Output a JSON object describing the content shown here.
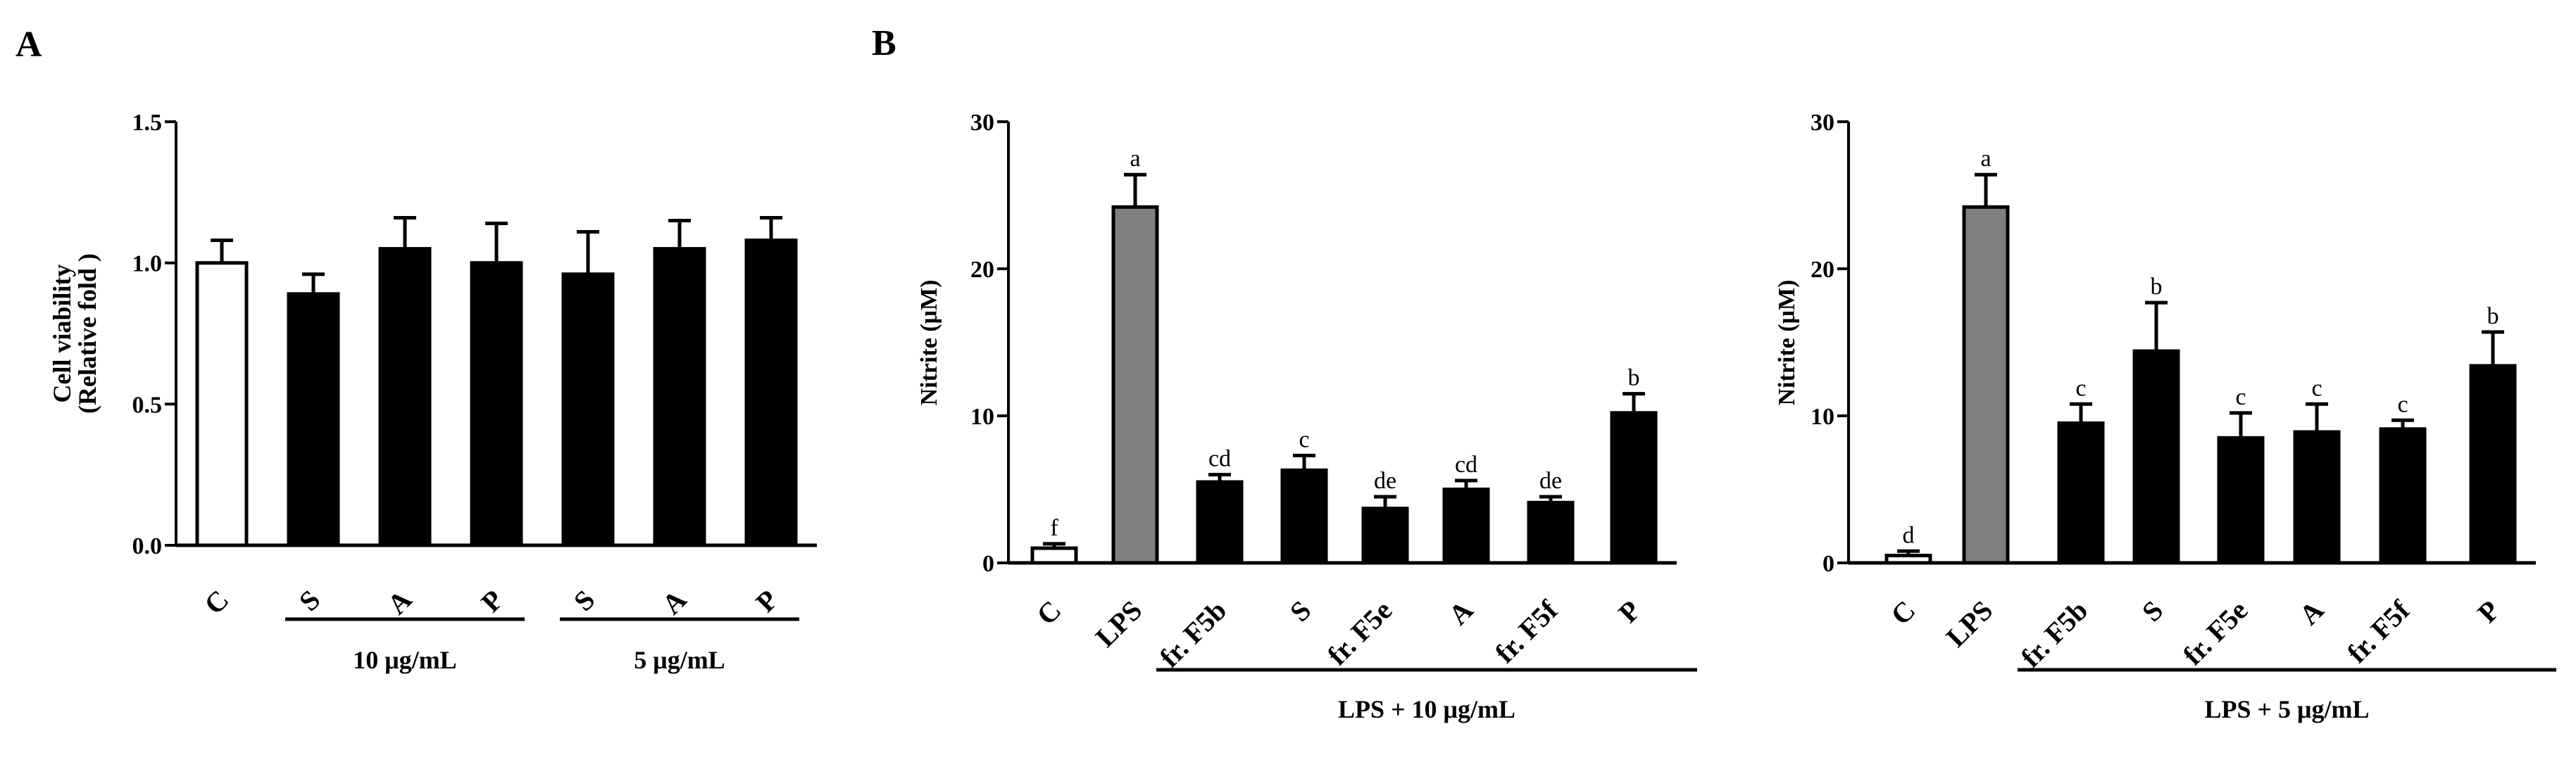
{
  "panel_labels": {
    "a": "A",
    "b": "B"
  },
  "colors": {
    "control": "#ffffff",
    "lps": "#808080",
    "sample": "#000000",
    "stroke": "#000000"
  },
  "chart_data": [
    {
      "id": "A",
      "type": "bar",
      "ylabel_line1": "Cell viability",
      "ylabel_line2": "(Relative fold )",
      "ylim": [
        0,
        1.5
      ],
      "yticks": [
        0,
        0.5,
        1,
        1.5
      ],
      "ytick_labels": [
        "0.0",
        "0.5",
        "1.0",
        "1.5"
      ],
      "categories": [
        "C",
        "S",
        "A",
        "P",
        "S",
        "A",
        "P"
      ],
      "values": [
        1.0,
        0.89,
        1.05,
        1.0,
        0.96,
        1.05,
        1.08
      ],
      "errors": [
        0.08,
        0.07,
        0.11,
        0.14,
        0.15,
        0.1,
        0.08
      ],
      "fill_keys": [
        "control",
        "sample",
        "sample",
        "sample",
        "sample",
        "sample",
        "sample"
      ],
      "letters": [],
      "groups": [
        {
          "label": "10 μg/mL",
          "from": 1,
          "to": 3
        },
        {
          "label": "5 μg/mL",
          "from": 4,
          "to": 6
        }
      ]
    },
    {
      "id": "B1",
      "type": "bar",
      "ylabel": "Nitrite (μM)",
      "ylim": [
        0,
        30
      ],
      "yticks": [
        0,
        10,
        20,
        30
      ],
      "ytick_labels": [
        "0",
        "10",
        "20",
        "30"
      ],
      "categories": [
        "C",
        "LPS",
        "fr. F5b",
        "S",
        "fr. F5e",
        "A",
        "fr. F5f",
        "P"
      ],
      "values": [
        1.0,
        24.2,
        5.5,
        6.3,
        3.7,
        5.0,
        4.1,
        10.2
      ],
      "errors": [
        0.3,
        2.2,
        0.5,
        1.0,
        0.8,
        0.6,
        0.4,
        1.3
      ],
      "fill_keys": [
        "control",
        "lps",
        "sample",
        "sample",
        "sample",
        "sample",
        "sample",
        "sample"
      ],
      "letters": [
        "f",
        "a",
        "cd",
        "c",
        "de",
        "cd",
        "de",
        "b"
      ],
      "groups": [
        {
          "label": "LPS + 10 μg/mL",
          "from": 2,
          "to": 7
        }
      ]
    },
    {
      "id": "B2",
      "type": "bar",
      "ylabel": "Nitrite (μM)",
      "ylim": [
        0,
        30
      ],
      "yticks": [
        0,
        10,
        20,
        30
      ],
      "ytick_labels": [
        "0",
        "10",
        "20",
        "30"
      ],
      "categories": [
        "C",
        "LPS",
        "fr. F5b",
        "S",
        "fr. F5e",
        "A",
        "fr. F5f",
        "P"
      ],
      "values": [
        0.5,
        24.2,
        9.5,
        14.4,
        8.5,
        8.9,
        9.1,
        13.4
      ],
      "errors": [
        0.3,
        2.2,
        1.3,
        3.3,
        1.7,
        1.9,
        0.6,
        2.3
      ],
      "fill_keys": [
        "control",
        "lps",
        "sample",
        "sample",
        "sample",
        "sample",
        "sample",
        "sample"
      ],
      "letters": [
        "d",
        "a",
        "c",
        "b",
        "c",
        "c",
        "c",
        "b"
      ],
      "groups": [
        {
          "label": "LPS + 5 μg/mL",
          "from": 2,
          "to": 7
        }
      ]
    }
  ]
}
